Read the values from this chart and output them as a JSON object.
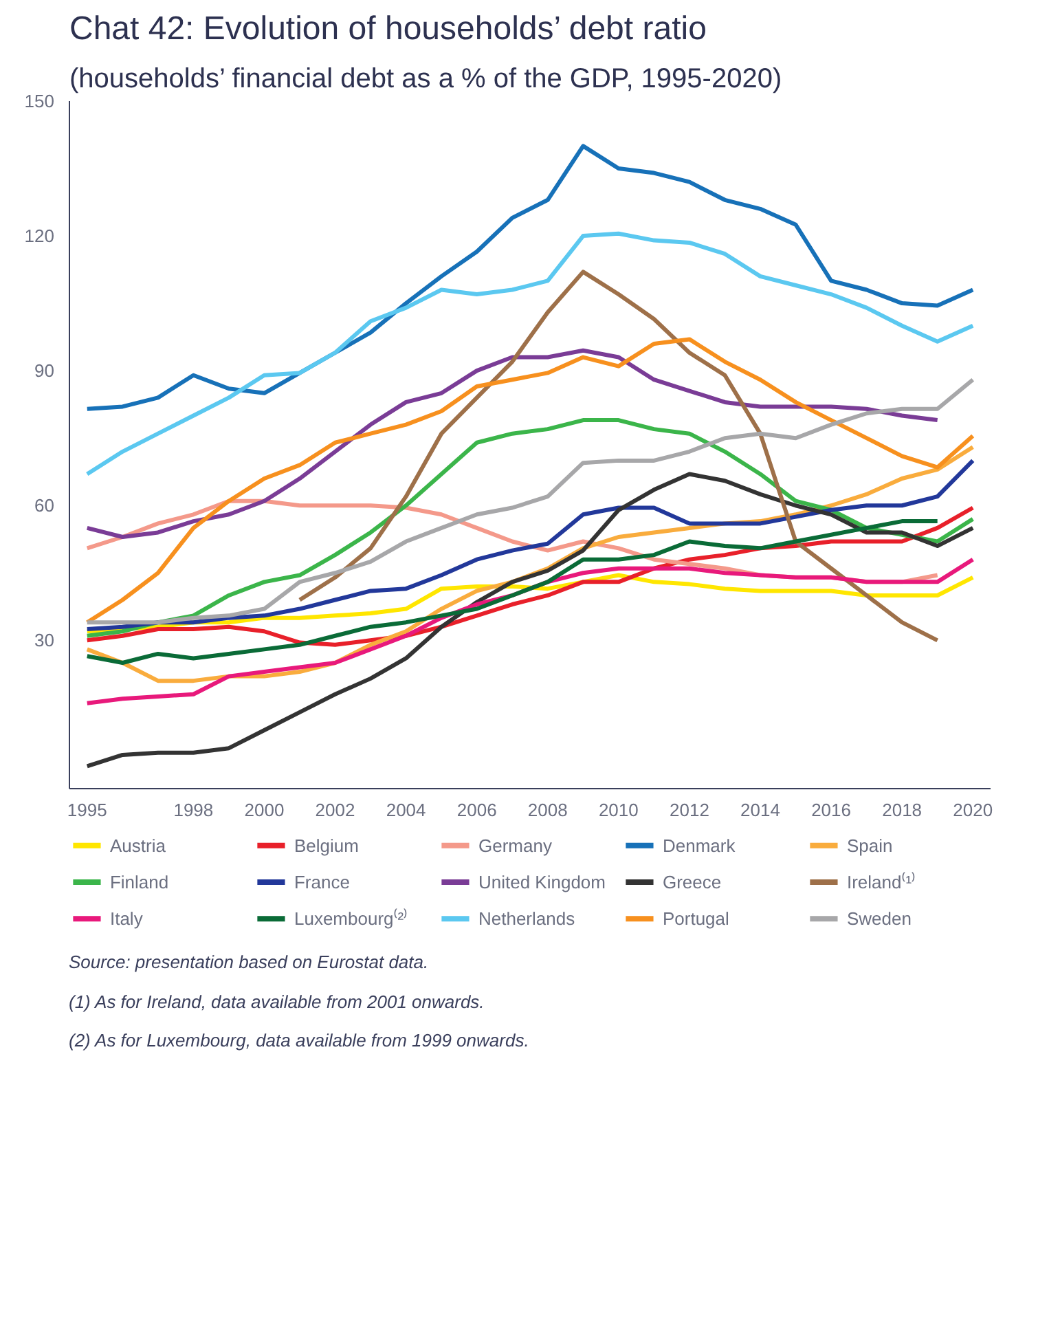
{
  "chart_data": {
    "type": "line",
    "title": "Chat 42: Evolution of households’ debt ratio",
    "subtitle": "(households’ financial debt as a % of the GDP, 1995-2020)",
    "x": [
      1995,
      1996,
      1997,
      1998,
      1999,
      2000,
      2001,
      2002,
      2003,
      2004,
      2005,
      2006,
      2007,
      2008,
      2009,
      2010,
      2011,
      2012,
      2013,
      2014,
      2015,
      2016,
      2017,
      2018,
      2019,
      2020
    ],
    "xlim": [
      1994.5,
      2020.5
    ],
    "xticks": [
      1995,
      1998,
      2000,
      2002,
      2004,
      2006,
      2008,
      2010,
      2012,
      2014,
      2016,
      2018,
      2020
    ],
    "ylim": [
      -3,
      150
    ],
    "yticks": [
      30,
      60,
      90,
      120,
      150
    ],
    "grid": false,
    "legend": "bottom",
    "series": [
      {
        "name": "Austria",
        "color": "#ffe600",
        "values": [
          32,
          32.5,
          33,
          34,
          34,
          35,
          35,
          35.5,
          36,
          37,
          41.5,
          42,
          42,
          41.5,
          43,
          44.5,
          43,
          42.5,
          41.5,
          41,
          41,
          41,
          40,
          40,
          40,
          44
        ]
      },
      {
        "name": "Belgium",
        "color": "#e8202a",
        "values": [
          30,
          31,
          32.5,
          32.5,
          33,
          32,
          29.5,
          29,
          30,
          31,
          33,
          35.5,
          38,
          40,
          43,
          43,
          46,
          48,
          49,
          50.5,
          51,
          52,
          52,
          52,
          55,
          59.5
        ]
      },
      {
        "name": "Germany",
        "color": "#f4998a",
        "values": [
          50.5,
          53,
          56,
          58,
          61,
          61,
          60,
          60,
          60,
          59.5,
          58,
          55,
          52,
          50,
          52,
          50.5,
          48,
          47,
          46,
          44.5,
          44,
          44,
          43,
          43,
          44.5,
          null
        ]
      },
      {
        "name": "Denmark",
        "color": "#1771b8",
        "values": [
          81.5,
          82,
          84,
          89,
          86,
          85,
          89.5,
          94,
          98.5,
          105,
          111,
          116.5,
          124,
          128,
          140,
          135,
          134,
          132,
          128,
          126,
          122.5,
          110,
          108,
          105,
          104.5,
          108
        ]
      },
      {
        "name": "Spain",
        "color": "#f9ac3d",
        "values": [
          28,
          25,
          21,
          21,
          22,
          22,
          23,
          25,
          29,
          32,
          37,
          41,
          43,
          46,
          50.5,
          53,
          54,
          55,
          56,
          56.5,
          58,
          60,
          62.5,
          66,
          68,
          73
        ]
      },
      {
        "name": "Finland",
        "color": "#3bb54a",
        "values": [
          31,
          32,
          34,
          35.5,
          40,
          43,
          44.5,
          49,
          54,
          60,
          67,
          74,
          76,
          77,
          79,
          79,
          77,
          76,
          72,
          67,
          61,
          59,
          55,
          53.5,
          52,
          57
        ]
      },
      {
        "name": "France",
        "color": "#22389a",
        "values": [
          32.5,
          33,
          34,
          34,
          35,
          35.5,
          37,
          39,
          41,
          41.5,
          44.5,
          48,
          50,
          51.5,
          58,
          59.5,
          59.5,
          56,
          56,
          56,
          57.5,
          59,
          60,
          60,
          62,
          70
        ]
      },
      {
        "name": "United Kingdom",
        "color": "#7a3c96",
        "values": [
          55,
          53,
          54,
          56.5,
          58,
          61,
          66,
          72,
          78,
          83,
          85,
          90,
          93,
          93,
          94.5,
          93,
          88,
          85.5,
          83,
          82,
          82,
          82,
          81.5,
          80,
          79,
          null
        ]
      },
      {
        "name": "Greece",
        "color": "#333333",
        "values": [
          2,
          4.5,
          5,
          5,
          6,
          10,
          14,
          18,
          21.5,
          26,
          33,
          38.5,
          43,
          45.5,
          50,
          59,
          63.5,
          67,
          65.5,
          62.5,
          60,
          58,
          54,
          54,
          51,
          55
        ]
      },
      {
        "name": "Ireland⁽¹⁾",
        "color": "#9e7049",
        "values": [
          null,
          null,
          null,
          null,
          null,
          null,
          39,
          44,
          50.5,
          62,
          76,
          84,
          92,
          103,
          112,
          107,
          101.5,
          94,
          89,
          76,
          52,
          46,
          40,
          34,
          30,
          null
        ]
      },
      {
        "name": "Italy",
        "color": "#e8197b",
        "values": [
          16,
          17,
          17.5,
          18,
          22,
          23,
          24,
          25,
          28,
          31,
          35,
          38,
          40,
          43,
          45,
          46,
          46,
          46,
          45,
          44.5,
          44,
          44,
          43,
          43,
          43,
          48
        ]
      },
      {
        "name": "Luxembourg⁽²⁾",
        "color": "#0a6b37",
        "values": [
          26.5,
          25,
          27,
          26,
          27,
          28,
          29,
          31,
          33,
          34,
          35.5,
          37,
          40,
          43,
          48,
          48,
          49,
          52,
          51,
          50.5,
          52,
          53.5,
          55,
          56.5,
          56.5,
          null
        ]
      },
      {
        "name": "Netherlands",
        "color": "#5bc8f0",
        "values": [
          67,
          72,
          76,
          80,
          84,
          89,
          89.5,
          94,
          101,
          104,
          108,
          107,
          108,
          110,
          120,
          120.5,
          119,
          118.5,
          116,
          111,
          109,
          107,
          104,
          100,
          96.5,
          100
        ]
      },
      {
        "name": "Portugal",
        "color": "#f7901e",
        "values": [
          34,
          39,
          45,
          55,
          61,
          66,
          69,
          74,
          76,
          78,
          81,
          86.5,
          88,
          89.5,
          93,
          91,
          96,
          97,
          92,
          88,
          83,
          79,
          75,
          71,
          68.5,
          75.5
        ]
      },
      {
        "name": "Sweden",
        "color": "#a7a7a9",
        "values": [
          34,
          34,
          34,
          35,
          35.5,
          37,
          43,
          45,
          47.5,
          52,
          55,
          58,
          59.5,
          62,
          69.5,
          70,
          70,
          72,
          75,
          76,
          75,
          78,
          80.5,
          81.5,
          81.5,
          88
        ]
      }
    ],
    "annotations": [
      "Source: presentation based on Eurostat data.",
      "(1) As for Ireland, data available from 2001 onwards.",
      "(2) As for Luxembourg, data available from 1999 onwards."
    ]
  }
}
